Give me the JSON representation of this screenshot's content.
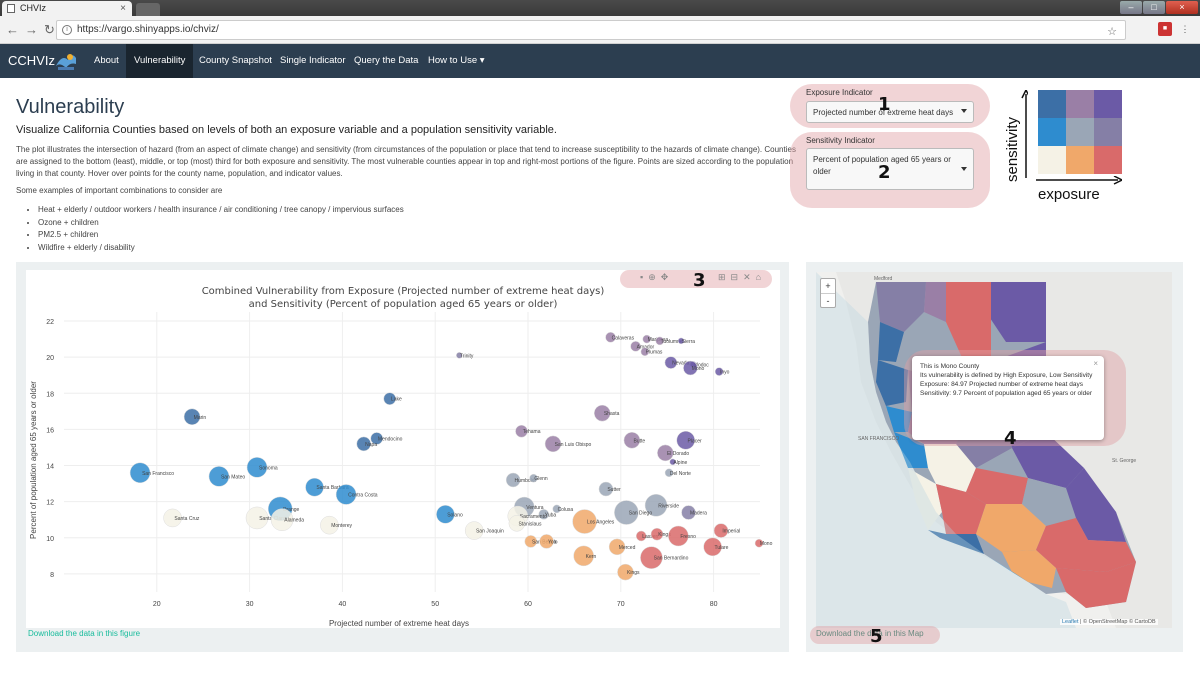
{
  "browser": {
    "tab_title": "CHVIz",
    "url": "https://vargo.shinyapps.io/chviz/"
  },
  "navbar": {
    "brand": "CCHVIz",
    "items": [
      "About",
      "Vulnerability",
      "County Snapshot",
      "Single Indicator",
      "Query the Data",
      "How to Use ▾"
    ],
    "active": "Vulnerability"
  },
  "page": {
    "title": "Vulnerability",
    "subtitle": "Visualize California Counties based on levels of both an exposure variable and a population sensitivity variable.",
    "description": "The plot illustrates the intersection of hazard (from an aspect of climate change) and sensitivity (from circumstances of the population or place that tend to increase susceptibility to the hazards of climate change). Counties are assigned to the bottom (least), middle, or top (most) third for both exposure and sensitivity. The most vulnerable counties appear in top and right-most portions of the figure. Points are sized according to the population living in that county. Hover over points for the county name, population, and indicator values.",
    "examples_intro": "Some examples of important combinations to consider are",
    "examples": [
      "Heat + elderly / outdoor workers / health insurance / air conditioning / tree canopy / impervious surfaces",
      "Ozone + children",
      "PM2.5 + children",
      "Wildfire + elderly / disability"
    ]
  },
  "controls": {
    "exposure_label": "Exposure Indicator",
    "exposure_value": "Projected number of extreme heat days",
    "sensitivity_label": "Sensitivity Indicator",
    "sensitivity_value": "Percent of population aged 65 years or older"
  },
  "legend": {
    "x_label": "exposure",
    "y_label": "sensitivity",
    "colors": [
      "#3c6fa6",
      "#9a7fa6",
      "#6b5aa6",
      "#2e8ccf",
      "#9aa6b6",
      "#857fa6",
      "#f5f2e6",
      "#f0a86a",
      "#d96a6a"
    ]
  },
  "callouts": [
    "1",
    "2",
    "3",
    "4",
    "5"
  ],
  "chart_data": {
    "type": "scatter",
    "title": "Combined Vulnerability from Exposure (Projected number of extreme heat days)",
    "subtitle": "and Sensitivity (Percent of population aged 65 years or older)",
    "xlabel": "Projected number of extreme heat days",
    "ylabel": "Percent of population aged 65 years or older",
    "xlim": [
      10,
      85
    ],
    "ylim": [
      7,
      22.5
    ],
    "xticks": [
      20,
      30,
      40,
      50,
      60,
      70,
      80
    ],
    "yticks": [
      8,
      10,
      12,
      14,
      16,
      18,
      20,
      22
    ],
    "points": [
      {
        "label": "Calaveras",
        "x": 68.9,
        "y": 21.1,
        "r": 5,
        "color": "#9a7fa6"
      },
      {
        "label": "Mariposa",
        "x": 72.8,
        "y": 21.0,
        "r": 4,
        "color": "#9a7fa6"
      },
      {
        "label": "Tuolumne",
        "x": 74.2,
        "y": 20.9,
        "r": 4,
        "color": "#9a7fa6"
      },
      {
        "label": "Sierra",
        "x": 76.5,
        "y": 20.9,
        "r": 3,
        "color": "#6b5aa6"
      },
      {
        "label": "Amador",
        "x": 71.6,
        "y": 20.6,
        "r": 5,
        "color": "#9a7fa6"
      },
      {
        "label": "Plumas",
        "x": 72.6,
        "y": 20.3,
        "r": 4,
        "color": "#9a7fa6"
      },
      {
        "label": "Nevada",
        "x": 75.4,
        "y": 19.7,
        "r": 6,
        "color": "#6b5aa6"
      },
      {
        "label": "Modoc",
        "x": 77.8,
        "y": 19.6,
        "r": 3,
        "color": "#6b5aa6"
      },
      {
        "label": "Mono",
        "x": 77.5,
        "y": 19.4,
        "r": 7,
        "color": "#6b5aa6"
      },
      {
        "label": "Inyo",
        "x": 80.6,
        "y": 19.2,
        "r": 4,
        "color": "#6b5aa6"
      },
      {
        "label": "Trinity",
        "x": 52.6,
        "y": 20.1,
        "r": 3,
        "color": "#857fa6"
      },
      {
        "label": "Lake",
        "x": 45.1,
        "y": 17.7,
        "r": 6,
        "color": "#3c6fa6"
      },
      {
        "label": "Marin",
        "x": 23.8,
        "y": 16.7,
        "r": 8,
        "color": "#3c6fa6"
      },
      {
        "label": "Shasta",
        "x": 68.0,
        "y": 16.9,
        "r": 8,
        "color": "#9a7fa6"
      },
      {
        "label": "Tehama",
        "x": 59.3,
        "y": 15.9,
        "r": 6,
        "color": "#9a7fa6"
      },
      {
        "label": "San Luis Obispo",
        "x": 62.7,
        "y": 15.2,
        "r": 8,
        "color": "#9a7fa6"
      },
      {
        "label": "Butte",
        "x": 71.2,
        "y": 15.4,
        "r": 8,
        "color": "#9a7fa6"
      },
      {
        "label": "Placer",
        "x": 77.0,
        "y": 15.4,
        "r": 9,
        "color": "#6b5aa6"
      },
      {
        "label": "El Dorado",
        "x": 74.8,
        "y": 14.7,
        "r": 8,
        "color": "#9a7fa6"
      },
      {
        "label": "Alpine",
        "x": 75.6,
        "y": 14.2,
        "r": 3,
        "color": "#6b5aa6"
      },
      {
        "label": "Mendocino",
        "x": 43.7,
        "y": 15.5,
        "r": 6,
        "color": "#3c6fa6"
      },
      {
        "label": "Napa",
        "x": 42.3,
        "y": 15.2,
        "r": 7,
        "color": "#3c6fa6"
      },
      {
        "label": "Del Norte",
        "x": 75.2,
        "y": 13.6,
        "r": 4,
        "color": "#9aa6b6"
      },
      {
        "label": "San Francisco",
        "x": 18.2,
        "y": 13.6,
        "r": 10,
        "color": "#2e8ccf"
      },
      {
        "label": "San Mateo",
        "x": 26.7,
        "y": 13.4,
        "r": 10,
        "color": "#2e8ccf"
      },
      {
        "label": "Sonoma",
        "x": 30.8,
        "y": 13.9,
        "r": 10,
        "color": "#2e8ccf"
      },
      {
        "label": "Humboldt",
        "x": 58.4,
        "y": 13.2,
        "r": 7,
        "color": "#9aa6b6"
      },
      {
        "label": "Glenn",
        "x": 60.6,
        "y": 13.3,
        "r": 4,
        "color": "#9aa6b6"
      },
      {
        "label": "Sutter",
        "x": 68.4,
        "y": 12.7,
        "r": 7,
        "color": "#9aa6b6"
      },
      {
        "label": "Santa Barbara",
        "x": 37.0,
        "y": 12.8,
        "r": 9,
        "color": "#2e8ccf"
      },
      {
        "label": "Contra Costa",
        "x": 40.4,
        "y": 12.4,
        "r": 10,
        "color": "#2e8ccf"
      },
      {
        "label": "Riverside",
        "x": 73.8,
        "y": 11.8,
        "r": 11,
        "color": "#9aa6b6"
      },
      {
        "label": "Ventura",
        "x": 59.6,
        "y": 11.7,
        "r": 10,
        "color": "#9aa6b6"
      },
      {
        "label": "Colusa",
        "x": 63.1,
        "y": 11.6,
        "r": 4,
        "color": "#9aa6b6"
      },
      {
        "label": "Yuba",
        "x": 61.7,
        "y": 11.3,
        "r": 5,
        "color": "#9aa6b6"
      },
      {
        "label": "San Diego",
        "x": 70.6,
        "y": 11.4,
        "r": 12,
        "color": "#9aa6b6"
      },
      {
        "label": "Madera",
        "x": 77.3,
        "y": 11.4,
        "r": 7,
        "color": "#857fa6"
      },
      {
        "label": "Orange",
        "x": 33.3,
        "y": 11.6,
        "r": 12,
        "color": "#2e8ccf"
      },
      {
        "label": "Solano",
        "x": 51.1,
        "y": 11.3,
        "r": 9,
        "color": "#2e8ccf"
      },
      {
        "label": "Sacramento",
        "x": 58.9,
        "y": 11.2,
        "r": 10,
        "color": "#f5f2e6"
      },
      {
        "label": "Stanislaus",
        "x": 58.8,
        "y": 10.8,
        "r": 8,
        "color": "#f5f2e6"
      },
      {
        "label": "Santa Cruz",
        "x": 21.7,
        "y": 11.1,
        "r": 9,
        "color": "#f5f2e6"
      },
      {
        "label": "Santa Clara",
        "x": 30.8,
        "y": 11.1,
        "r": 11,
        "color": "#f5f2e6"
      },
      {
        "label": "Alameda",
        "x": 33.5,
        "y": 11.0,
        "r": 11,
        "color": "#f5f2e6"
      },
      {
        "label": "Monterey",
        "x": 38.6,
        "y": 10.7,
        "r": 9,
        "color": "#f5f2e6"
      },
      {
        "label": "San Joaquin",
        "x": 54.2,
        "y": 10.4,
        "r": 9,
        "color": "#f5f2e6"
      },
      {
        "label": "Los Angeles",
        "x": 66.1,
        "y": 10.9,
        "r": 12,
        "color": "#f0a86a"
      },
      {
        "label": "Imperial",
        "x": 80.8,
        "y": 10.4,
        "r": 7,
        "color": "#d96a6a"
      },
      {
        "label": "Lassen",
        "x": 72.2,
        "y": 10.1,
        "r": 5,
        "color": "#d96a6a"
      },
      {
        "label": "Kings",
        "x": 73.9,
        "y": 10.2,
        "r": 6,
        "color": "#d96a6a"
      },
      {
        "label": "Fresno",
        "x": 76.2,
        "y": 10.1,
        "r": 10,
        "color": "#d96a6a"
      },
      {
        "label": "Mono",
        "x": 84.9,
        "y": 9.7,
        "r": 4,
        "color": "#d96a6a"
      },
      {
        "label": "Tulare",
        "x": 79.9,
        "y": 9.5,
        "r": 9,
        "color": "#d96a6a"
      },
      {
        "label": "San Benito",
        "x": 60.3,
        "y": 9.8,
        "r": 6,
        "color": "#f0a86a"
      },
      {
        "label": "Yolo",
        "x": 62.0,
        "y": 9.8,
        "r": 7,
        "color": "#f0a86a"
      },
      {
        "label": "Merced",
        "x": 69.6,
        "y": 9.5,
        "r": 8,
        "color": "#f0a86a"
      },
      {
        "label": "Kern",
        "x": 66.0,
        "y": 9.0,
        "r": 10,
        "color": "#f0a86a"
      },
      {
        "label": "San Bernardino",
        "x": 73.3,
        "y": 8.9,
        "r": 11,
        "color": "#d96a6a"
      },
      {
        "label": "Kings",
        "x": 70.5,
        "y": 8.1,
        "r": 8,
        "color": "#f0a86a"
      }
    ]
  },
  "chart_links": {
    "download_figure": "Download the data in this figure",
    "download_map": "Download the data in this Map"
  },
  "map": {
    "zoom_in": "+",
    "zoom_out": "-",
    "popup_lines": [
      "This is Mono County",
      "Its vulnerability is defined by High Exposure, Low Sensitivity",
      "Exposure: 84.97 Projected number of extreme heat days",
      "Sensitivity: 9.7 Percent of population aged 65 years or older"
    ],
    "attribution_leaflet": "Leaflet",
    "attribution_rest": "| © OpenStreetMap © CartoDB",
    "labels": [
      "Medford",
      "SAN FRANCISCO",
      "St. George"
    ]
  }
}
